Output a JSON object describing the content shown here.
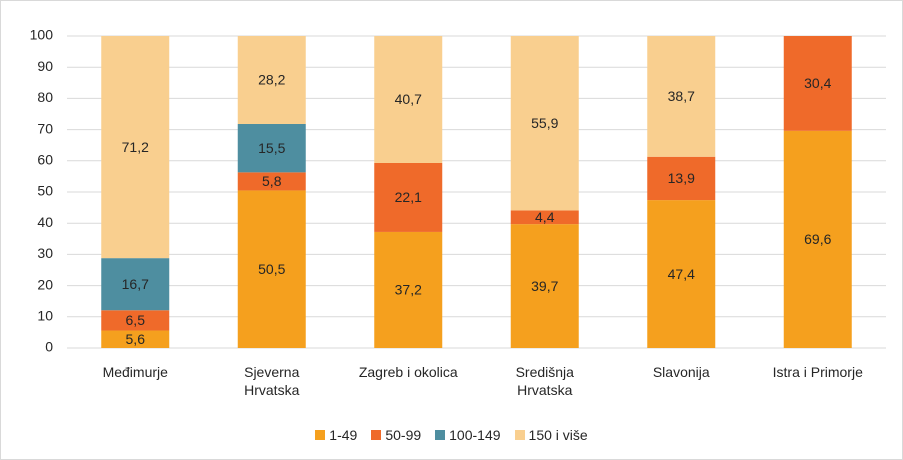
{
  "chart_data": {
    "type": "stacked_bar",
    "categories": [
      "Međimurje",
      "Sjeverna Hrvatska",
      "Zagreb i okolica",
      "Središnja Hrvatska",
      "Slavonija",
      "Istra i Primorje"
    ],
    "series": [
      {
        "name": "1-49",
        "color": "#f5a01e",
        "values": [
          5.6,
          50.5,
          37.2,
          39.7,
          47.4,
          69.6
        ],
        "value_labels": [
          "5,6",
          "50,5",
          "37,2",
          "39,7",
          "47,4",
          "69,6"
        ]
      },
      {
        "name": "50-99",
        "color": "#ef6a2a",
        "values": [
          6.5,
          5.8,
          22.1,
          4.4,
          13.9,
          30.4
        ],
        "value_labels": [
          "6,5",
          "5,8",
          "22,1",
          "4,4",
          "13,9",
          "30,4"
        ]
      },
      {
        "name": "100-149",
        "color": "#4e8ea0",
        "values": [
          16.7,
          15.5,
          null,
          null,
          null,
          null
        ],
        "value_labels": [
          "16,7",
          "15,5",
          null,
          null,
          null,
          null
        ]
      },
      {
        "name": "150 i više",
        "color": "#f9cf8f",
        "values": [
          71.2,
          28.2,
          40.7,
          55.9,
          38.7,
          null
        ],
        "value_labels": [
          "71,2",
          "28,2",
          "40,7",
          "55,9",
          "38,7",
          null
        ]
      }
    ],
    "ylim": [
      0,
      100
    ],
    "yticks": [
      0,
      10,
      20,
      30,
      40,
      50,
      60,
      70,
      80,
      90,
      100
    ],
    "grid": true,
    "legend": "bottom"
  }
}
